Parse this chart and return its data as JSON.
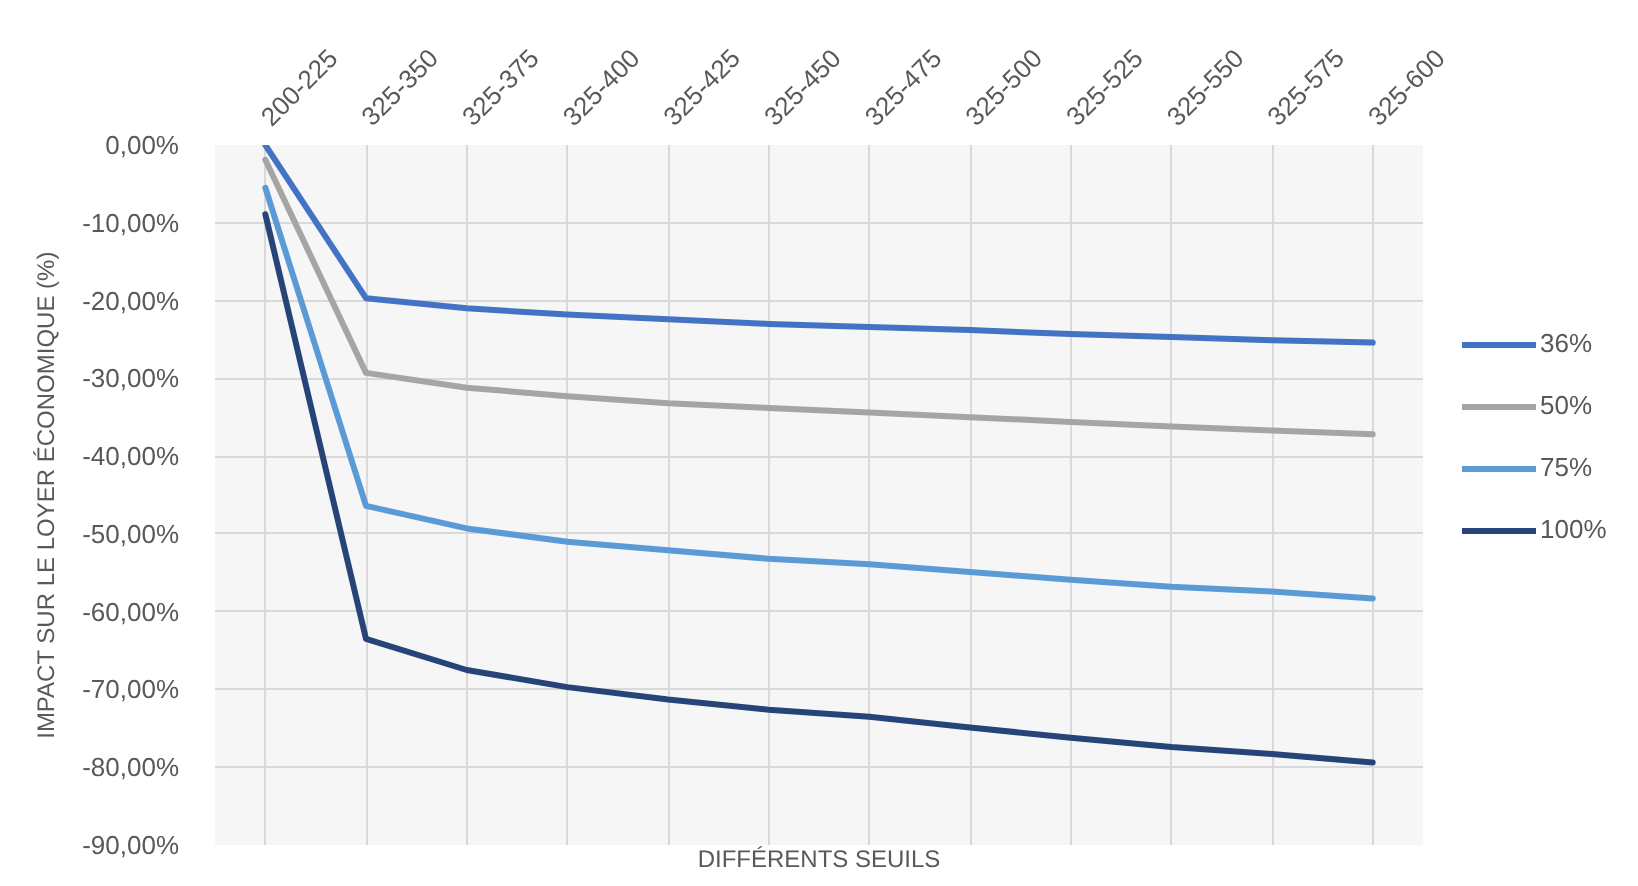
{
  "chart_data": {
    "type": "line",
    "xlabel": "DIFFÉRENTS SEUILS",
    "ylabel": "IMPACT SUR LE LOYER ÉCONOMIQUE (%)",
    "categories": [
      "200-225",
      "325-350",
      "325-375",
      "325-400",
      "325-425",
      "325-450",
      "325-475",
      "325-500",
      "325-525",
      "325-550",
      "325-575",
      "325-600"
    ],
    "series": [
      {
        "name": "36%",
        "color": "#4472c4",
        "values": [
          0,
          -19.7,
          -21.0,
          -21.8,
          -22.4,
          -23.0,
          -23.4,
          -23.8,
          -24.3,
          -24.7,
          -25.1,
          -25.4
        ]
      },
      {
        "name": "50%",
        "color": "#a5a5a5",
        "values": [
          -1.9,
          -29.3,
          -31.2,
          -32.3,
          -33.2,
          -33.8,
          -34.4,
          -35.0,
          -35.6,
          -36.2,
          -36.7,
          -37.2
        ]
      },
      {
        "name": "75%",
        "color": "#5b9bd5",
        "values": [
          -5.5,
          -46.4,
          -49.3,
          -51.0,
          -52.1,
          -53.2,
          -53.9,
          -54.9,
          -55.9,
          -56.8,
          -57.4,
          -58.3
        ]
      },
      {
        "name": "100%",
        "color": "#264478",
        "values": [
          -8.9,
          -63.5,
          -67.5,
          -69.7,
          -71.3,
          -72.6,
          -73.5,
          -74.9,
          -76.2,
          -77.4,
          -78.3,
          -79.4
        ]
      }
    ],
    "ylim": [
      -90,
      0
    ],
    "yticks": [
      {
        "value": 0,
        "label": "0,00%"
      },
      {
        "value": -10,
        "label": "-10,00%"
      },
      {
        "value": -20,
        "label": "-20,00%"
      },
      {
        "value": -30,
        "label": "-30,00%"
      },
      {
        "value": -40,
        "label": "-40,00%"
      },
      {
        "value": -50,
        "label": "-50,00%"
      },
      {
        "value": -60,
        "label": "-60,00%"
      },
      {
        "value": -70,
        "label": "-70,00%"
      },
      {
        "value": -80,
        "label": "-80,00%"
      },
      {
        "value": -90,
        "label": "-90,00%"
      }
    ],
    "grid": true,
    "legend": "right"
  }
}
